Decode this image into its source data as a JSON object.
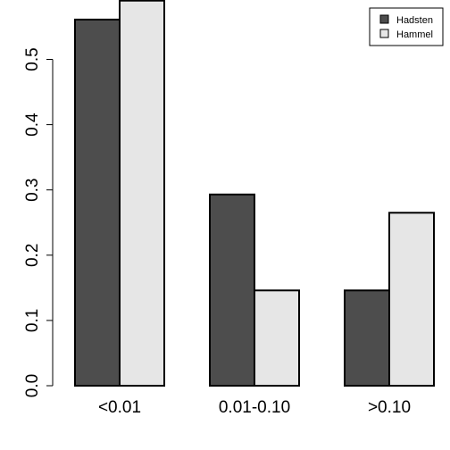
{
  "chart_data": {
    "type": "bar",
    "title": "",
    "xlabel": "",
    "ylabel": "",
    "categories": [
      "<0.01",
      "0.01-0.10",
      ">0.10"
    ],
    "series": [
      {
        "name": "Hadsten",
        "values": [
          0.561,
          0.293,
          0.146
        ],
        "color": "#4d4d4d"
      },
      {
        "name": "Hammel",
        "values": [
          0.59,
          0.146,
          0.265
        ],
        "color": "#e6e6e6"
      }
    ],
    "ylim": [
      0,
      0.59
    ],
    "yticks": [
      "0.0",
      "0.1",
      "0.2",
      "0.3",
      "0.4",
      "0.5"
    ],
    "grid": false,
    "legend_position": "top-right"
  }
}
